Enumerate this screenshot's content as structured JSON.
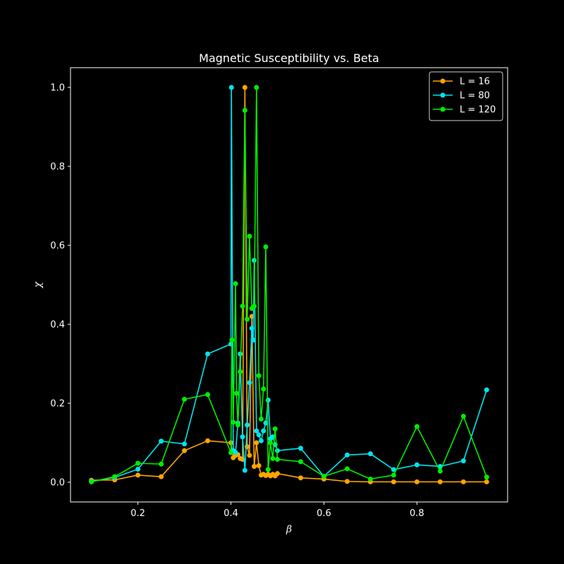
{
  "chart_data": {
    "type": "line",
    "title": "Magnetic Susceptibility vs. Beta",
    "xlabel": "β",
    "ylabel": "χ",
    "xlim": [
      0.055,
      0.995
    ],
    "ylim": [
      -0.05,
      1.05
    ],
    "xticks": [
      0.2,
      0.4,
      0.6,
      0.8
    ],
    "xtick_labels": [
      "0.2",
      "0.4",
      "0.6",
      "0.8"
    ],
    "yticks": [
      0.0,
      0.2,
      0.4,
      0.6,
      0.8,
      1.0
    ],
    "ytick_labels": [
      "0.0",
      "0.2",
      "0.4",
      "0.6",
      "0.8",
      "1.0"
    ],
    "grid": false,
    "legend_position": "top-right",
    "background": "#000000",
    "series": [
      {
        "name": "L = 16",
        "color": "#ffa500",
        "marker": "circle",
        "x": [
          0.1,
          0.15,
          0.2,
          0.25,
          0.3,
          0.35,
          0.4,
          0.405,
          0.41,
          0.415,
          0.42,
          0.425,
          0.43,
          0.435,
          0.44,
          0.445,
          0.45,
          0.455,
          0.46,
          0.465,
          0.47,
          0.475,
          0.48,
          0.485,
          0.49,
          0.495,
          0.5,
          0.55,
          0.6,
          0.65,
          0.7,
          0.75,
          0.8,
          0.85,
          0.9,
          0.95
        ],
        "y": [
          0.005,
          0.006,
          0.018,
          0.014,
          0.08,
          0.105,
          0.1,
          0.062,
          0.068,
          0.07,
          0.06,
          0.058,
          1.0,
          0.09,
          0.068,
          0.42,
          0.04,
          0.1,
          0.042,
          0.018,
          0.02,
          0.017,
          0.02,
          0.016,
          0.02,
          0.016,
          0.022,
          0.011,
          0.008,
          0.002,
          0.001,
          0.001,
          0.001,
          0.001,
          0.001,
          0.001
        ]
      },
      {
        "name": "L = 80",
        "color": "#00e5ee",
        "marker": "circle",
        "x": [
          0.1,
          0.15,
          0.2,
          0.25,
          0.3,
          0.35,
          0.4,
          0.401,
          0.405,
          0.41,
          0.415,
          0.42,
          0.425,
          0.43,
          0.435,
          0.44,
          0.445,
          0.448,
          0.45,
          0.455,
          0.46,
          0.465,
          0.47,
          0.475,
          0.48,
          0.485,
          0.49,
          0.495,
          0.5,
          0.55,
          0.6,
          0.65,
          0.7,
          0.75,
          0.8,
          0.85,
          0.9,
          0.95
        ],
        "y": [
          0.002,
          0.012,
          0.033,
          0.104,
          0.097,
          0.325,
          0.35,
          1.0,
          0.08,
          0.075,
          0.15,
          0.325,
          0.115,
          0.03,
          0.145,
          0.252,
          0.39,
          0.36,
          0.562,
          0.13,
          0.12,
          0.105,
          0.13,
          0.15,
          0.208,
          0.11,
          0.115,
          0.095,
          0.08,
          0.086,
          0.015,
          0.069,
          0.072,
          0.032,
          0.044,
          0.04,
          0.054,
          0.234
        ]
      },
      {
        "name": "L = 120",
        "color": "#00ee00",
        "marker": "circle",
        "x": [
          0.1,
          0.15,
          0.2,
          0.25,
          0.3,
          0.35,
          0.4,
          0.402,
          0.405,
          0.41,
          0.412,
          0.415,
          0.42,
          0.425,
          0.43,
          0.435,
          0.44,
          0.445,
          0.45,
          0.455,
          0.46,
          0.465,
          0.47,
          0.475,
          0.48,
          0.485,
          0.49,
          0.495,
          0.5,
          0.55,
          0.6,
          0.65,
          0.7,
          0.75,
          0.8,
          0.85,
          0.9,
          0.95
        ],
        "y": [
          0.001,
          0.014,
          0.048,
          0.046,
          0.21,
          0.222,
          0.075,
          0.36,
          0.152,
          0.503,
          0.225,
          0.145,
          0.28,
          0.446,
          0.942,
          0.413,
          0.623,
          0.44,
          0.446,
          1.0,
          0.27,
          0.16,
          0.236,
          0.596,
          0.032,
          0.1,
          0.06,
          0.135,
          0.058,
          0.052,
          0.015,
          0.034,
          0.008,
          0.018,
          0.141,
          0.028,
          0.167,
          0.013
        ]
      }
    ]
  }
}
